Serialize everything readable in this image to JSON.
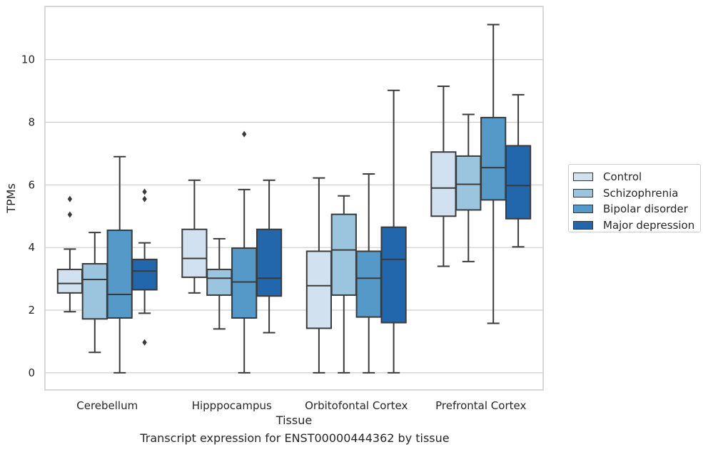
{
  "caption": "Transcript expression for ENST00000444362 by tissue",
  "chart_data": {
    "type": "box",
    "title": "",
    "xlabel": "Tissue",
    "ylabel": "TPMs",
    "ylim": [
      -0.55,
      11.7
    ],
    "yticks": [
      0,
      2,
      4,
      6,
      8,
      10
    ],
    "grid": "horizontal",
    "legend_position": "right",
    "categories": [
      "Cerebellum",
      "Hipppocampus",
      "Orbitofontal Cortex",
      "Prefrontal Cortex"
    ],
    "series": [
      {
        "name": "Control",
        "color": "#d1e1f0",
        "boxes": [
          {
            "whisker_low": 1.95,
            "q1": 2.55,
            "median": 2.85,
            "q3": 3.3,
            "whisker_high": 3.95,
            "outliers": []
          },
          {
            "whisker_low": 2.55,
            "q1": 3.05,
            "median": 3.65,
            "q3": 4.58,
            "whisker_high": 6.15,
            "outliers": []
          },
          {
            "whisker_low": 0.0,
            "q1": 1.42,
            "median": 2.78,
            "q3": 3.88,
            "whisker_high": 6.22,
            "outliers": []
          },
          {
            "whisker_low": 3.4,
            "q1": 5.0,
            "median": 5.9,
            "q3": 7.05,
            "whisker_high": 9.15,
            "outliers": []
          }
        ]
      },
      {
        "name": "Schizophrenia",
        "color": "#9bc5de",
        "boxes": [
          {
            "whisker_low": 0.65,
            "q1": 1.72,
            "median": 2.98,
            "q3": 3.48,
            "whisker_high": 4.48,
            "outliers": []
          },
          {
            "whisker_low": 1.4,
            "q1": 2.48,
            "median": 3.02,
            "q3": 3.3,
            "whisker_high": 4.28,
            "outliers": []
          },
          {
            "whisker_low": 0.0,
            "q1": 2.48,
            "median": 3.92,
            "q3": 5.06,
            "whisker_high": 5.65,
            "outliers": []
          },
          {
            "whisker_low": 3.55,
            "q1": 5.2,
            "median": 6.02,
            "q3": 6.92,
            "whisker_high": 8.25,
            "outliers": []
          }
        ]
      },
      {
        "name": "Bipolar disorder",
        "color": "#5599c9",
        "boxes": [
          {
            "whisker_low": 0.0,
            "q1": 1.75,
            "median": 2.5,
            "q3": 4.55,
            "whisker_high": 6.9,
            "outliers": []
          },
          {
            "whisker_low": 0.0,
            "q1": 1.75,
            "median": 2.9,
            "q3": 3.98,
            "whisker_high": 5.85,
            "outliers": [
              7.62
            ]
          },
          {
            "whisker_low": 0.0,
            "q1": 1.78,
            "median": 3.02,
            "q3": 3.88,
            "whisker_high": 6.35,
            "outliers": []
          },
          {
            "whisker_low": 1.58,
            "q1": 5.52,
            "median": 6.55,
            "q3": 8.15,
            "whisker_high": 11.12,
            "outliers": []
          }
        ]
      },
      {
        "name": "Major depression",
        "color": "#2267ab",
        "boxes": [
          {
            "whisker_low": 1.9,
            "q1": 2.65,
            "median": 3.25,
            "q3": 3.62,
            "whisker_high": 4.15,
            "outliers": [
              5.55,
              5.78,
              0.97
            ]
          },
          {
            "whisker_low": 1.28,
            "q1": 2.45,
            "median": 3.02,
            "q3": 4.58,
            "whisker_high": 6.15,
            "outliers": []
          },
          {
            "whisker_low": 0.0,
            "q1": 1.6,
            "median": 3.62,
            "q3": 4.65,
            "whisker_high": 9.02,
            "outliers": []
          },
          {
            "whisker_low": 4.02,
            "q1": 4.92,
            "median": 5.98,
            "q3": 7.25,
            "whisker_high": 8.88,
            "outliers": []
          }
        ]
      }
    ],
    "extra_outliers": [
      {
        "category": "Cerebellum",
        "series": "Control",
        "values": [
          5.55,
          5.05
        ]
      }
    ]
  }
}
